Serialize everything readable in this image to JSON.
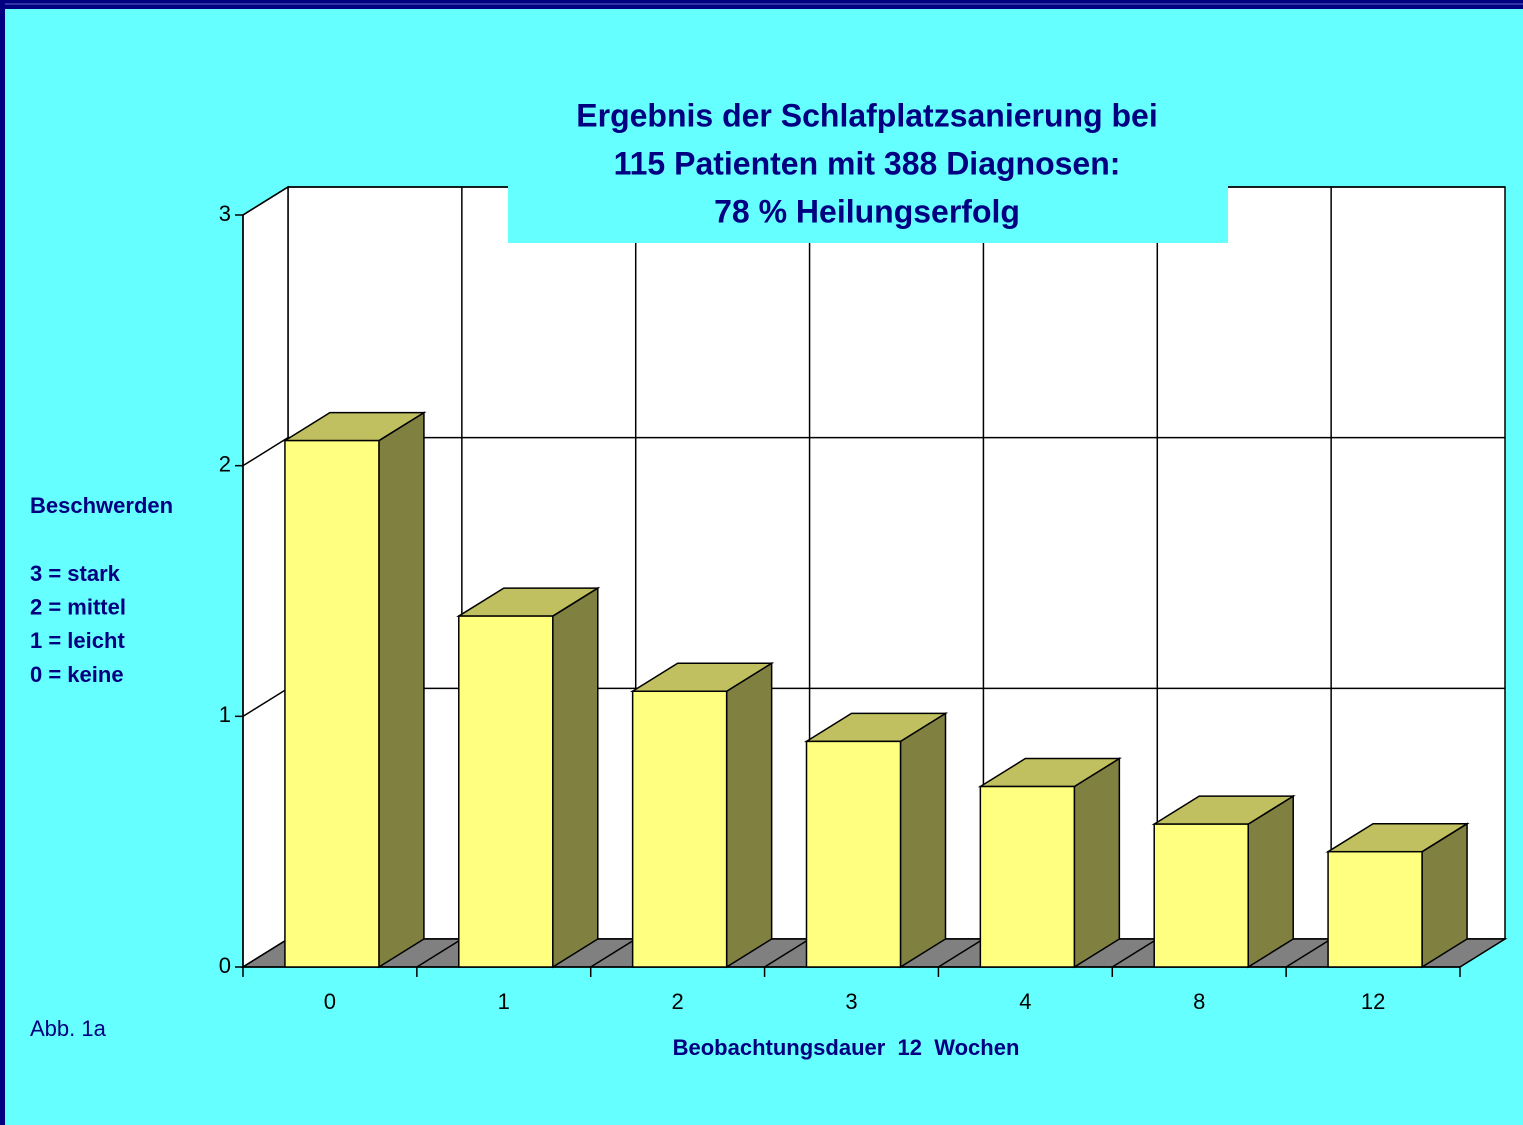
{
  "chart_data": {
    "type": "bar3d",
    "title": [
      "Ergebnis der Schlafplatzsanierung bei",
      "115 Patienten mit 388 Diagnosen:",
      "78 % Heilungserfolg"
    ],
    "ylabel": "Beschwerden",
    "legend_notes": [
      "3 = stark",
      "2 = mittel",
      "1 = leicht",
      "0 = keine"
    ],
    "xlabel": "Beobachtungsdauer  12  Wochen",
    "caption": "Abb. 1a",
    "categories": [
      "0",
      "1",
      "2",
      "3",
      "4",
      "8",
      "12"
    ],
    "values": [
      2.1,
      1.4,
      1.1,
      0.9,
      0.72,
      0.57,
      0.46
    ],
    "color": "#FFFF80",
    "side_color": "#808040",
    "top_color": "#C0C060",
    "ylim": [
      0,
      3
    ],
    "yticks": [
      0,
      1,
      2,
      3
    ],
    "grid": true
  }
}
